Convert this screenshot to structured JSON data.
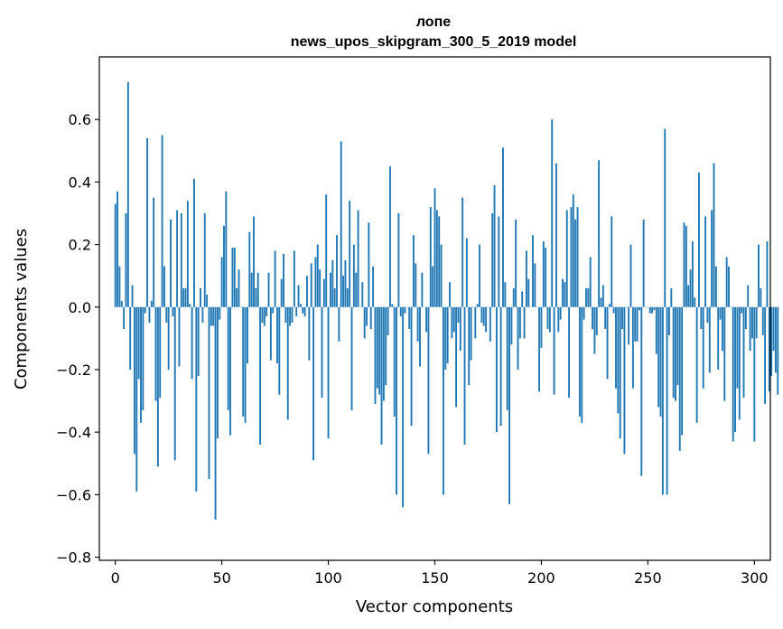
{
  "chart_data": {
    "type": "bar",
    "title": "лопе",
    "subtitle": "news_upos_skipgram_300_5_2019 model",
    "xlabel": "Vector components",
    "ylabel": "Components values",
    "xlim": [
      -7.5,
      307.5
    ],
    "ylim": [
      -0.81,
      0.8
    ],
    "xticks": [
      0,
      50,
      100,
      150,
      200,
      250,
      300
    ],
    "yticks": [
      -0.8,
      -0.6,
      -0.4,
      -0.2,
      0.0,
      0.2,
      0.4,
      0.6
    ],
    "ytick_labels": [
      "−0.8",
      "−0.6",
      "−0.4",
      "−0.2",
      "0.0",
      "0.2",
      "0.4",
      "0.6"
    ],
    "bar_color": "#1f77b4",
    "values": [
      0.33,
      0.37,
      0.13,
      0.02,
      -0.07,
      0.3,
      0.72,
      -0.2,
      0.07,
      -0.47,
      -0.59,
      -0.23,
      -0.37,
      -0.33,
      -0.02,
      0.54,
      -0.05,
      0.02,
      0.35,
      -0.3,
      -0.51,
      -0.29,
      0.55,
      0.13,
      -0.05,
      -0.2,
      0.28,
      -0.03,
      -0.49,
      0.31,
      -0.19,
      0.3,
      0.06,
      0.06,
      0.34,
      0.01,
      -0.23,
      0.41,
      -0.59,
      -0.22,
      0.06,
      -0.05,
      0.3,
      0.04,
      -0.55,
      -0.06,
      -0.06,
      -0.68,
      -0.42,
      -0.04,
      0.16,
      0.26,
      0.37,
      -0.33,
      -0.41,
      0.19,
      0.19,
      0.06,
      0.12,
      0.0,
      -0.35,
      -0.37,
      -0.18,
      0.24,
      0.11,
      0.29,
      0.06,
      0.11,
      -0.44,
      -0.05,
      -0.06,
      -0.03,
      0.11,
      -0.17,
      -0.02,
      0.18,
      -0.18,
      -0.28,
      0.09,
      0.17,
      -0.05,
      -0.36,
      -0.06,
      -0.05,
      0.18,
      -0.03,
      0.07,
      0.01,
      -0.02,
      -0.03,
      0.1,
      -0.17,
      0.14,
      -0.49,
      0.16,
      0.2,
      0.12,
      -0.29,
      0.09,
      0.36,
      -0.42,
      0.11,
      0.15,
      0.06,
      0.23,
      -0.11,
      0.53,
      0.1,
      0.15,
      0.06,
      0.34,
      -0.33,
      0.2,
      0.11,
      0.31,
      0.0,
      0.08,
      -0.1,
      -0.06,
      0.27,
      -0.07,
      0.13,
      -0.31,
      -0.26,
      -0.28,
      -0.44,
      -0.3,
      -0.25,
      -0.09,
      0.45,
      0.01,
      -0.35,
      -0.6,
      0.3,
      -0.03,
      -0.64,
      -0.02,
      0.0,
      -0.07,
      -0.38,
      0.23,
      0.14,
      -0.11,
      -0.19,
      0.11,
      0.0,
      -0.08,
      -0.47,
      0.32,
      0.13,
      0.38,
      0.31,
      0.29,
      0.2,
      -0.6,
      -0.2,
      -0.18,
      0.08,
      -0.1,
      -0.08,
      -0.32,
      -0.05,
      -0.14,
      0.35,
      -0.44,
      0.22,
      -0.25,
      -0.17,
      0.0,
      -0.1,
      0.01,
      0.2,
      -0.05,
      -0.06,
      -0.08,
      0.0,
      -0.11,
      0.3,
      0.39,
      -0.4,
      0.29,
      -0.38,
      0.51,
      0.08,
      -0.33,
      -0.63,
      -0.12,
      0.06,
      0.28,
      -0.2,
      -0.1,
      0.05,
      -0.1,
      0.18,
      0.09,
      0.0,
      0.23,
      0.14,
      0.0,
      -0.27,
      -0.13,
      0.21,
      0.19,
      -0.07,
      -0.08,
      0.6,
      -0.28,
      0.46,
      -0.08,
      -0.04,
      0.09,
      0.08,
      0.31,
      -0.29,
      0.32,
      0.36,
      0.28,
      0.32,
      -0.35,
      -0.37,
      -0.04,
      0.06,
      0.06,
      0.16,
      -0.07,
      -0.15,
      -0.09,
      0.47,
      0.03,
      0.07,
      -0.07,
      -0.23,
      0.01,
      0.29,
      -0.02,
      -0.26,
      -0.34,
      -0.42,
      -0.07,
      -0.47,
      0.0,
      -0.12,
      0.2,
      -0.26,
      -0.11,
      -0.11,
      -0.01,
      -0.54,
      0.28,
      0.0,
      0.0,
      -0.02,
      -0.02,
      -0.01,
      -0.15,
      -0.32,
      -0.35,
      -0.6,
      0.57,
      -0.6,
      -0.09,
      0.06,
      -0.29,
      -0.3,
      -0.25,
      -0.46,
      -0.41,
      0.27,
      0.26,
      0.07,
      0.12,
      0.21,
      0.03,
      -0.37,
      0.43,
      -0.07,
      -0.26,
      0.29,
      -0.05,
      -0.21,
      0.31,
      0.46,
      0.13,
      -0.2,
      -0.04,
      -0.14,
      -0.3,
      0.16,
      0.13,
      0.0,
      -0.43,
      -0.4,
      -0.26,
      -0.36,
      -0.02,
      -0.29,
      -0.07,
      0.07,
      -0.14,
      -0.1,
      -0.43,
      -0.1,
      0.2,
      0.06,
      -0.09,
      -0.31,
      0.21,
      -0.27,
      -0.22,
      -0.14,
      -0.21,
      -0.28
    ]
  }
}
